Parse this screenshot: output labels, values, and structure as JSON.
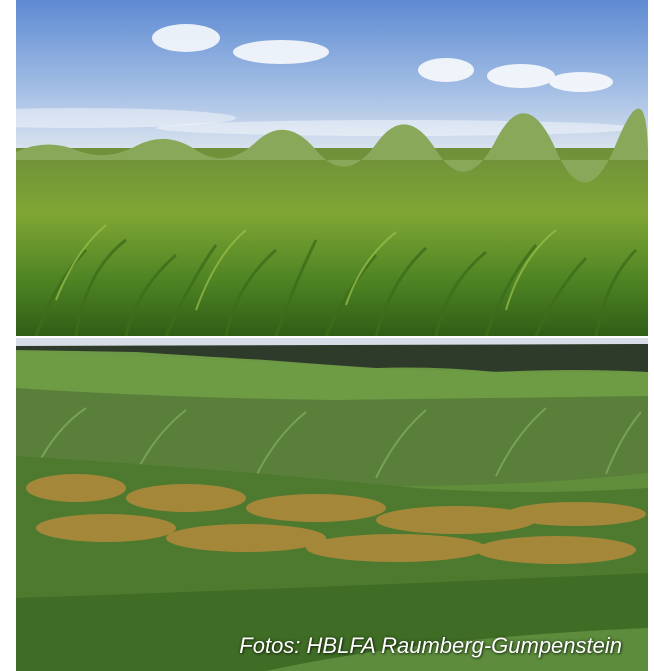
{
  "photos": [
    {
      "subject": "maize field under blue sky with clouds"
    },
    {
      "subject": "sorghum plots in grassland with tree line"
    }
  ],
  "credit": {
    "text": "Fotos: HBLFA Raumberg-Gumpenstein"
  },
  "colors": {
    "sky": "#7ea3d9",
    "maize_green": "#5f8f24",
    "grass": "#5e8a34",
    "sorghum_panicle": "#b58a3c"
  }
}
